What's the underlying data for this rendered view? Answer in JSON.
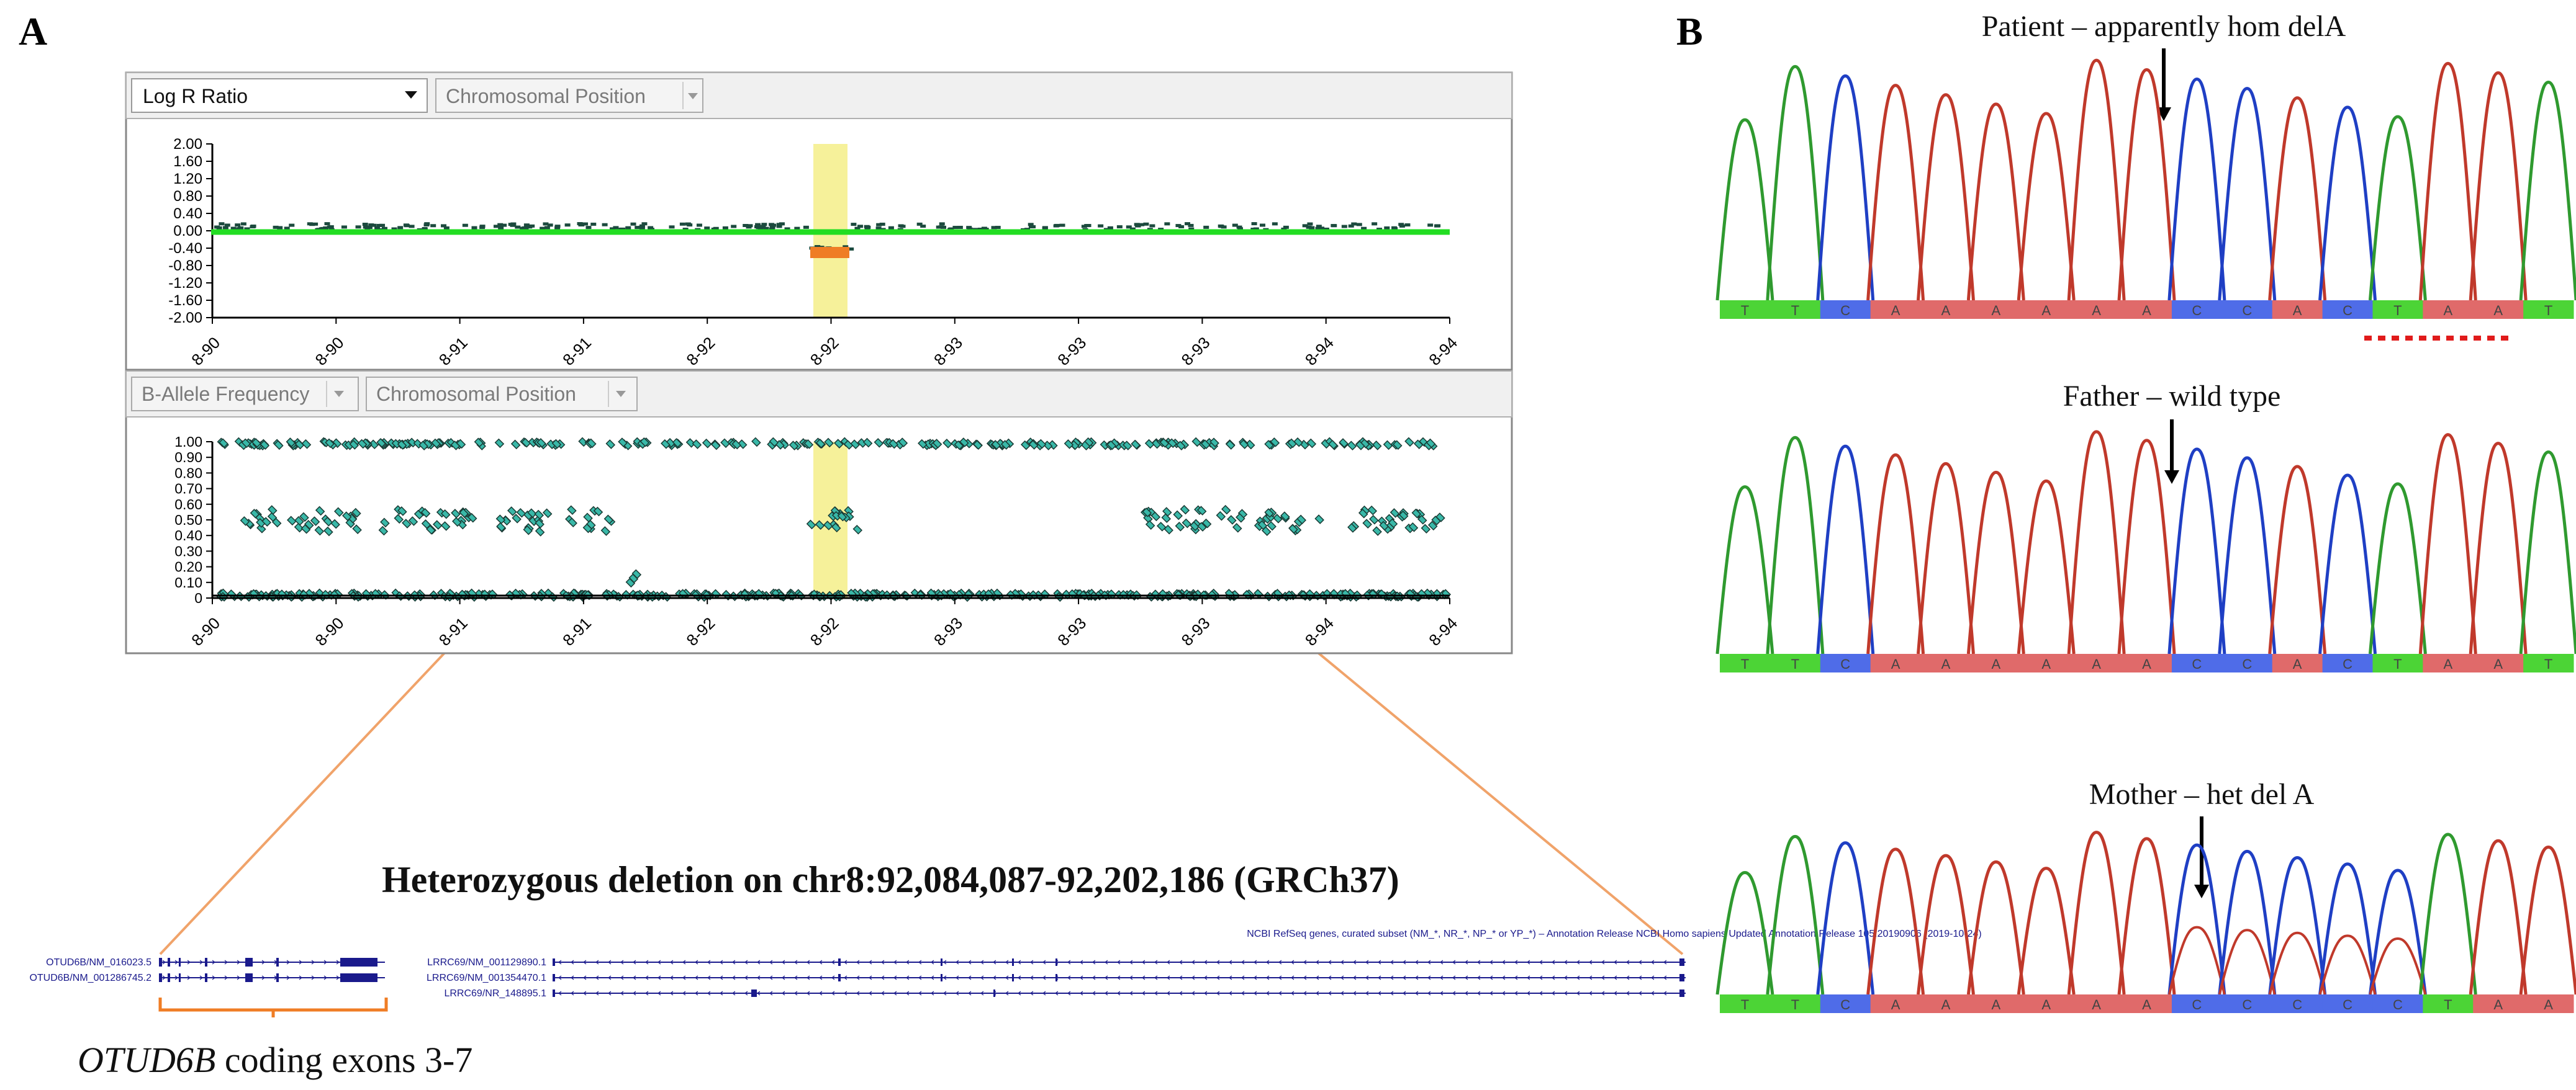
{
  "panel_a": {
    "label": "A",
    "lrr_panel": {
      "dropdown_value": "Log R Ratio",
      "axis_dropdown": "Chromosomal Position",
      "y_ticks": [
        "2.00",
        "1.60",
        "1.20",
        "0.80",
        "0.40",
        "0.00",
        "-0.40",
        "-0.80",
        "-1.20",
        "-1.60",
        "-2.00"
      ],
      "x_ticks": [
        "8-90",
        "8-90",
        "8-91",
        "8-91",
        "8-92",
        "8-92",
        "8-93",
        "8-93",
        "8-93",
        "8-94",
        "8-94"
      ]
    },
    "baf_panel": {
      "dropdown_value": "B-Allele Frequency",
      "axis_dropdown": "Chromosomal Position",
      "y_ticks": [
        "1.00",
        "0.90",
        "0.80",
        "0.70",
        "0.60",
        "0.50",
        "0.40",
        "0.30",
        "0.20",
        "0.10",
        "0"
      ],
      "x_ticks": [
        "8-90",
        "8-90",
        "8-91",
        "8-91",
        "8-92",
        "8-92",
        "8-93",
        "8-93",
        "8-93",
        "8-94",
        "8-94"
      ]
    },
    "deletion_title": "Heterozygous deletion on chr8:92,084,087-92,202,186 (GRCh37)",
    "refseq_header": "NCBI RefSeq genes, curated subset  (NM_*, NR_*, NP_* or YP_*) – Annotation Release NCBI Homo sapiens Updated Annotation Release 105.20190906 (2019-10-24)",
    "transcripts_left": [
      "OTUD6B/NM_016023.5",
      "OTUD6B/NM_001286745.2"
    ],
    "transcripts_right": [
      "LRRC69/NM_001129890.1",
      "LRRC69/NM_001354470.1",
      "LRRC69/NR_148895.1"
    ],
    "exon_label_gene": "OTUD6B",
    "exon_label_rest": " coding exons 3-7"
  },
  "panel_b": {
    "label": "B",
    "traces": [
      {
        "title": "Patient – apparently hom delA",
        "bases": [
          "T",
          "T",
          "C",
          "A",
          "A",
          "A",
          "A",
          "A",
          "A",
          "C",
          "C",
          "A",
          "C",
          "T",
          "A",
          "A",
          "T"
        ],
        "peaks": [
          "G",
          "G",
          "C",
          "A",
          "A",
          "A",
          "A",
          "A",
          "A",
          "C",
          "C",
          "A",
          "C",
          "G",
          "A",
          "A",
          "G"
        ]
      },
      {
        "title": "Father – wild type",
        "bases": [
          "T",
          "T",
          "C",
          "A",
          "A",
          "A",
          "A",
          "A",
          "A",
          "C",
          "C",
          "A",
          "C",
          "T",
          "A",
          "A",
          "T"
        ],
        "peaks": [
          "G",
          "G",
          "C",
          "A",
          "A",
          "A",
          "A",
          "A",
          "A",
          "C",
          "C",
          "A",
          "C",
          "G",
          "A",
          "A",
          "G"
        ]
      },
      {
        "title": "Mother – het del A",
        "bases": [
          "T",
          "T",
          "C",
          "A",
          "A",
          "A",
          "A",
          "A",
          "A",
          "C",
          "C",
          "C",
          "C",
          "C",
          "T",
          "A",
          "A"
        ],
        "peaks": [
          "G",
          "G",
          "C",
          "A",
          "A",
          "A",
          "A",
          "A",
          "A",
          "C",
          "C",
          "C",
          "C",
          "C",
          "G",
          "A",
          "A"
        ]
      }
    ]
  },
  "colors": {
    "base_T": "#4cd436",
    "base_C": "#4f6ce8",
    "base_A": "#e06a6a",
    "trace_A": "#c0392b",
    "trace_C": "#1f3fc4",
    "trace_G": "#2f9a2f",
    "lrr_line": "#22dd22",
    "highlight": "#f6f19a",
    "deletion_bar": "#ef7d25",
    "zoom_lines": "#f0a36a",
    "refseq_blue": "#1a1a8c",
    "scatter_fill": "#39b8a8"
  }
}
